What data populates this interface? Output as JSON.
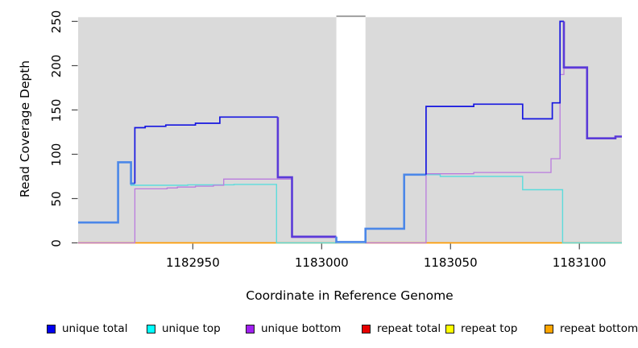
{
  "axes": {
    "x_label": "Coordinate in Reference Genome",
    "y_label": "Read Coverage Depth"
  },
  "legend": {
    "items": [
      {
        "label": "unique total",
        "swatch_color": "#0000EE"
      },
      {
        "label": "unique top",
        "swatch_color": "#00FFFF"
      },
      {
        "label": "unique bottom",
        "swatch_color": "#A020F0"
      },
      {
        "label": "repeat total",
        "swatch_color": "#E60000"
      },
      {
        "label": "repeat top",
        "swatch_color": "#FFFF00"
      },
      {
        "label": "repeat bottom",
        "swatch_color": "#FFA500"
      }
    ]
  },
  "chart_data": {
    "type": "line",
    "title": "",
    "xlabel": "Coordinate in Reference Genome",
    "ylabel": "Read Coverage Depth",
    "xlim": [
      1182905.5,
      1183116.5
    ],
    "ylim": [
      0,
      250
    ],
    "x_ticks": [
      1182950,
      1183000,
      1183050,
      1183100
    ],
    "y_ticks": [
      0,
      50,
      100,
      150,
      200,
      250
    ],
    "grid": false,
    "legend_position": "bottom",
    "panel_bg": "#DADADA",
    "no_data_gap": {
      "from": 1183005.7,
      "to": 1183017
    },
    "series": [
      {
        "name": "repeat total",
        "color": "#DD1133",
        "width": 1.2,
        "steps": [
          [
            1182905.5,
            0
          ]
        ]
      },
      {
        "name": "repeat top",
        "color": "#F0F000",
        "width": 1.2,
        "steps": [
          [
            1182905.5,
            0
          ]
        ]
      },
      {
        "name": "repeat bottom",
        "color": "#FF9C00",
        "width": 1.6,
        "steps": [
          [
            1182905.5,
            0
          ]
        ]
      },
      {
        "name": "unique top",
        "color": "#5CDCDC",
        "width": 1.4,
        "steps": [
          [
            1182905.5,
            23
          ],
          [
            1182921,
            91
          ],
          [
            1182926,
            65
          ],
          [
            1182948,
            65.5
          ],
          [
            1182966,
            66
          ],
          [
            1182982.5,
            0
          ],
          [
            1183017,
            16
          ],
          [
            1183032,
            77
          ],
          [
            1183046,
            75
          ],
          [
            1183078,
            60
          ],
          [
            1183093.5,
            0
          ]
        ]
      },
      {
        "name": "unique bottom",
        "color": "#BA7BDE",
        "width": 1.3,
        "steps": [
          [
            1182905.5,
            0
          ],
          [
            1182927.5,
            61
          ],
          [
            1182940,
            62
          ],
          [
            1182944,
            63
          ],
          [
            1182951,
            64
          ],
          [
            1182958,
            65
          ],
          [
            1182962,
            72
          ],
          [
            1182988.5,
            6
          ],
          [
            1183005.7,
            0.5
          ],
          [
            1183017,
            0
          ],
          [
            1183040.5,
            78
          ],
          [
            1183059,
            79.5
          ],
          [
            1183089,
            95
          ],
          [
            1183092.5,
            190
          ],
          [
            1183094,
            197
          ],
          [
            1183103,
            118
          ],
          [
            1183114,
            120
          ]
        ]
      },
      {
        "name": "unique total",
        "color": "#1616E0",
        "width": 1.7,
        "overlap_top_color": "#4B87E8",
        "overlap_bottom_color": "#5A3AD8",
        "overlap_width": 2.6,
        "steps": [
          [
            1182905.5,
            23
          ],
          [
            1182921,
            91
          ],
          [
            1182926,
            67
          ],
          [
            1182927.5,
            130
          ],
          [
            1182931.5,
            131.5
          ],
          [
            1182939.5,
            133
          ],
          [
            1182951,
            135
          ],
          [
            1182960.5,
            142
          ],
          [
            1182983,
            74
          ],
          [
            1182988.5,
            7
          ],
          [
            1183005.7,
            1
          ],
          [
            1183017,
            16
          ],
          [
            1183032,
            77
          ],
          [
            1183040.5,
            154
          ],
          [
            1183059,
            156.5
          ],
          [
            1183078,
            140
          ],
          [
            1183089.5,
            158
          ],
          [
            1183092.5,
            250
          ],
          [
            1183094,
            198
          ],
          [
            1183103,
            118
          ],
          [
            1183114,
            120
          ]
        ]
      }
    ]
  }
}
